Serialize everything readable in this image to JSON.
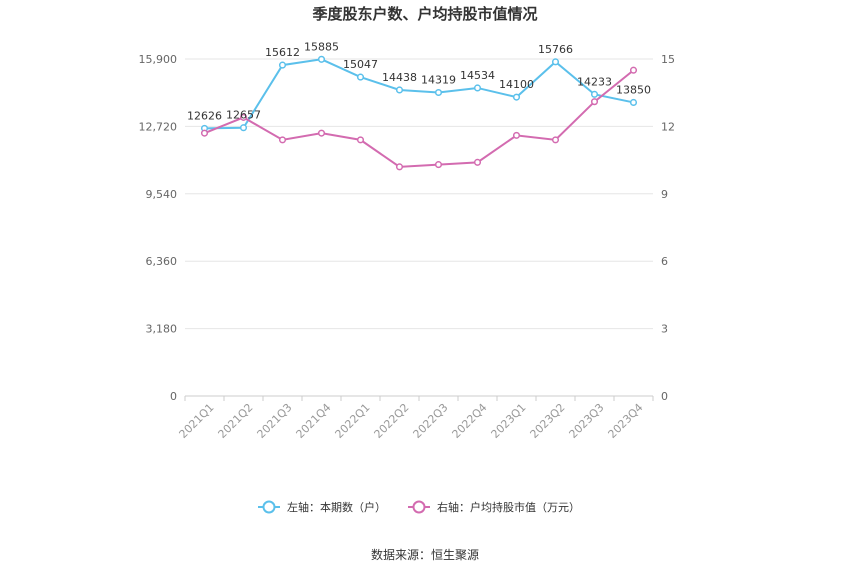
{
  "chart_data": {
    "type": "line",
    "title": "季度股东户数、户均持股市值情况",
    "categories": [
      "2021Q1",
      "2021Q2",
      "2021Q3",
      "2021Q4",
      "2022Q1",
      "2022Q2",
      "2022Q3",
      "2022Q4",
      "2023Q1",
      "2023Q2",
      "2023Q3",
      "2023Q4"
    ],
    "left_axis": {
      "ylim": [
        0,
        15900
      ],
      "ticks": [
        "0",
        "3,180",
        "6,360",
        "9,540",
        "12,720",
        "15,900"
      ]
    },
    "right_axis": {
      "ylim": [
        0,
        15
      ],
      "ticks": [
        "0",
        "3",
        "6",
        "9",
        "12",
        "15"
      ]
    },
    "series": [
      {
        "name": "左轴：本期数（户）",
        "axis": "left",
        "color": "#5bc0eb",
        "values": [
          12626,
          12657,
          15612,
          15885,
          15047,
          14438,
          14319,
          14534,
          14100,
          15766,
          14233,
          13850
        ],
        "labels": [
          "12626",
          "12657",
          "15612",
          "15885",
          "15047",
          "14438",
          "14319",
          "14534",
          "14100",
          "15766",
          "14233",
          "13850"
        ]
      },
      {
        "name": "右轴：户均持股市值（万元）",
        "axis": "right",
        "color": "#d36bb0",
        "values": [
          11.7,
          12.4,
          11.4,
          11.7,
          11.4,
          10.2,
          10.3,
          10.4,
          11.6,
          11.4,
          13.1,
          14.5
        ]
      }
    ],
    "grid": true,
    "legend": "bottom-center"
  },
  "source": "数据来源：恒生聚源"
}
